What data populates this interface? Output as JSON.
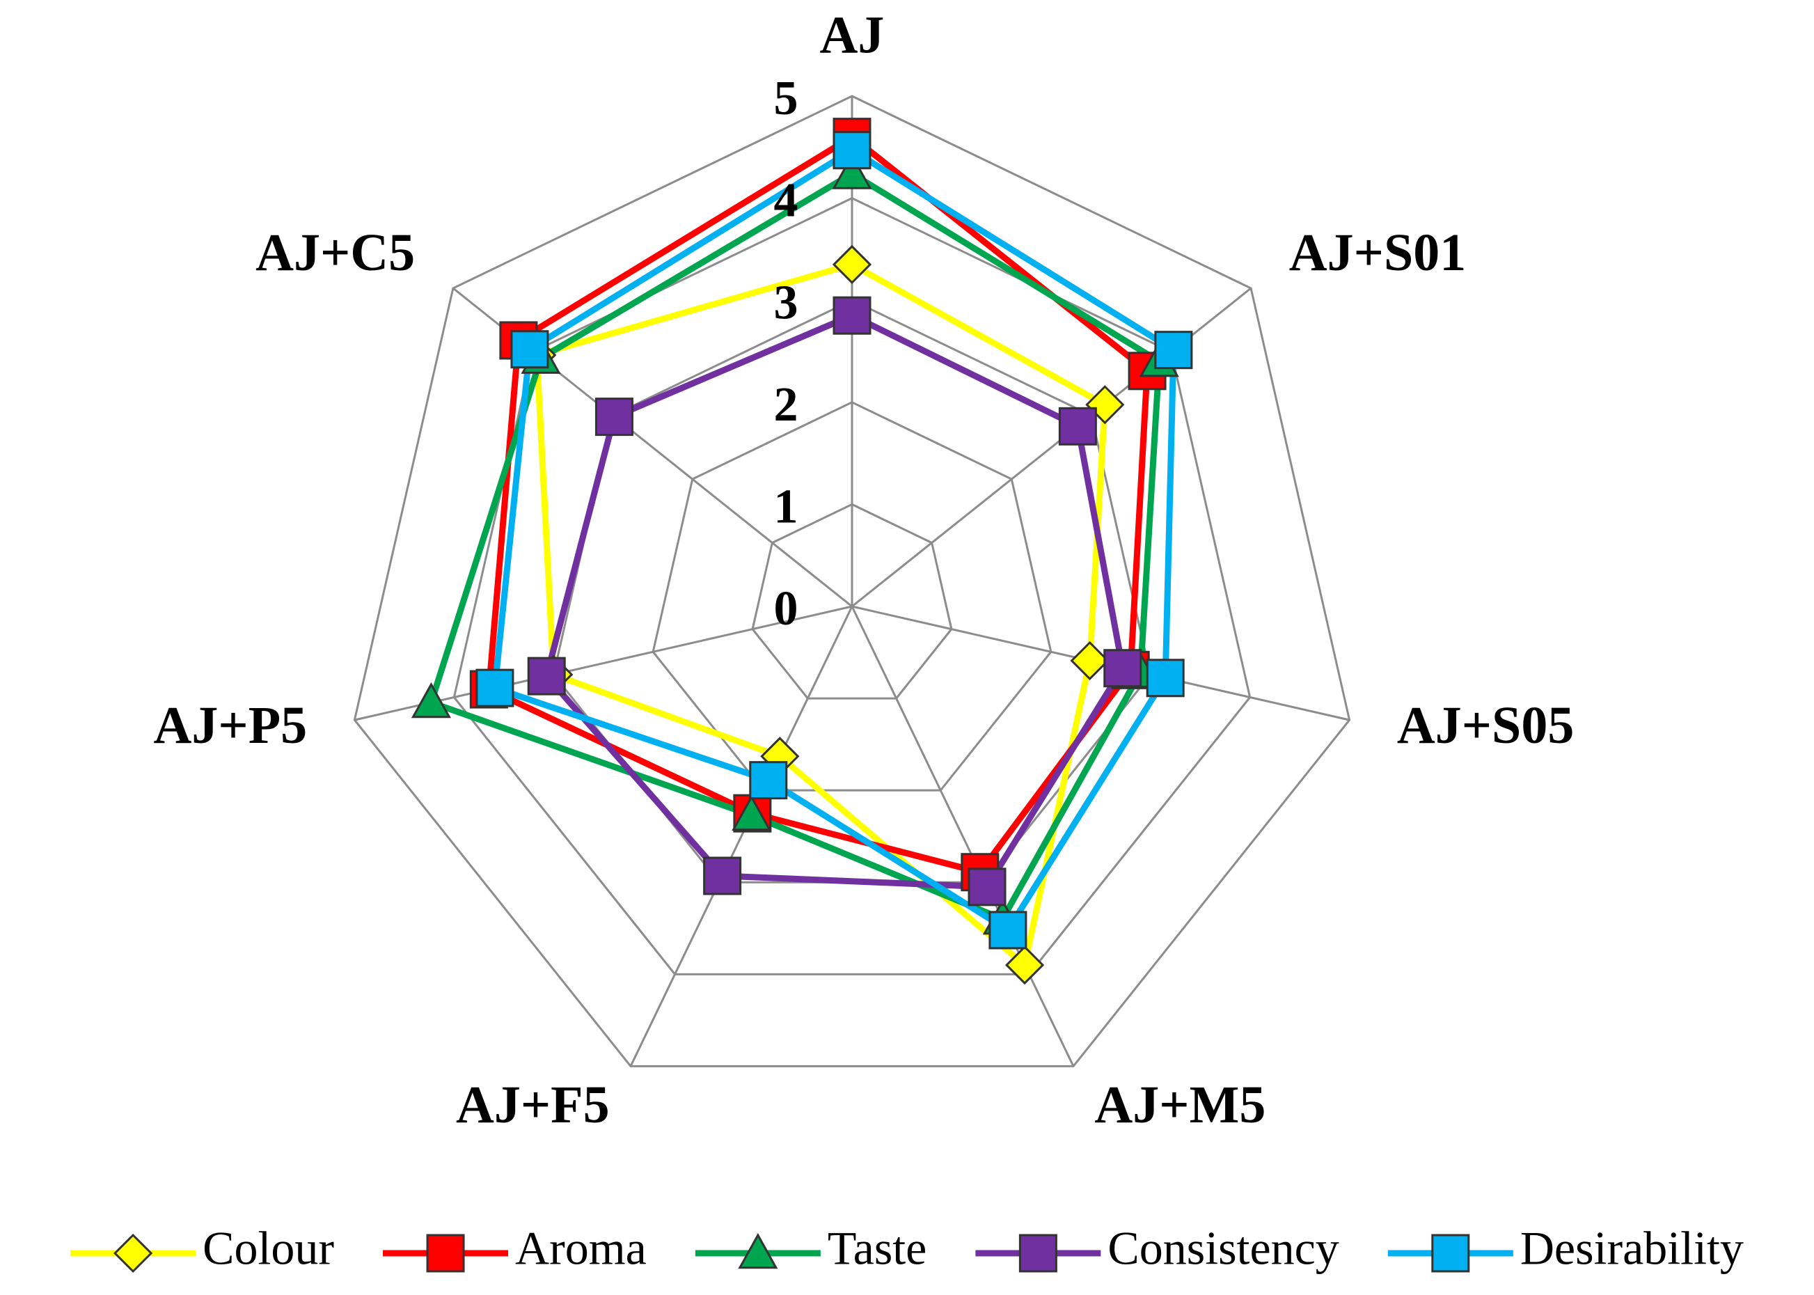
{
  "chart_data": {
    "type": "radar",
    "categories": [
      "AJ",
      "AJ+S01",
      "AJ+S05",
      "AJ+M5",
      "AJ+F5",
      "AJ+P5",
      "AJ+C5"
    ],
    "ylim": [
      0,
      5
    ],
    "yticks": [
      0,
      1,
      2,
      3,
      4,
      5
    ],
    "grid": true,
    "grid_color": "#8c8c8c",
    "legend": "bottom",
    "series": [
      {
        "name": "Colour",
        "color": "#ffff00",
        "marker": "diamond",
        "values": [
          3.35,
          3.17,
          2.39,
          3.9,
          1.63,
          3.0,
          3.95
        ]
      },
      {
        "name": "Aroma",
        "color": "#ff0000",
        "marker": "square",
        "values": [
          4.6,
          3.7,
          2.8,
          2.89,
          2.25,
          3.65,
          4.18
        ]
      },
      {
        "name": "Taste",
        "color": "#00a550",
        "marker": "triangle",
        "values": [
          4.24,
          3.85,
          2.9,
          3.4,
          2.27,
          4.23,
          3.9
        ]
      },
      {
        "name": "Consistency",
        "color": "#7030a0",
        "marker": "square",
        "values": [
          2.85,
          2.83,
          2.72,
          3.05,
          2.93,
          3.07,
          2.98
        ]
      },
      {
        "name": "Desirability",
        "color": "#00b0f0",
        "marker": "square",
        "values": [
          4.47,
          4.03,
          3.15,
          3.52,
          1.89,
          3.59,
          4.04
        ]
      }
    ]
  }
}
